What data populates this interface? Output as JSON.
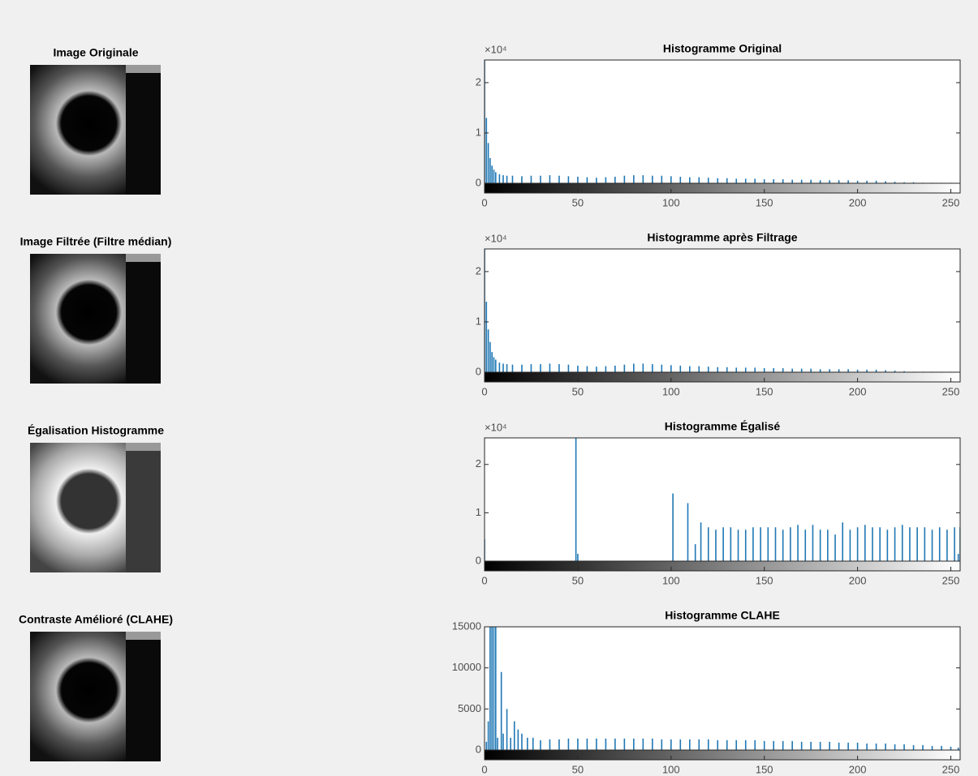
{
  "chart_data": [
    {
      "type": "bar",
      "image_title": "Image Originale",
      "title": "Histogramme Original",
      "y_multiplier": "×10⁴",
      "color": "#1f77b4",
      "xlim": [
        0,
        255
      ],
      "xticks": [
        0,
        50,
        100,
        150,
        200,
        250
      ],
      "ylim": [
        0,
        24500
      ],
      "yticks": [
        {
          "value": 0,
          "label": "0"
        },
        {
          "value": 10000,
          "label": "1"
        },
        {
          "value": 20000,
          "label": "2"
        }
      ],
      "x": [
        0,
        1,
        2,
        3,
        4,
        5,
        6,
        8,
        10,
        12,
        15,
        20,
        25,
        30,
        35,
        40,
        45,
        50,
        55,
        60,
        65,
        70,
        75,
        80,
        85,
        90,
        95,
        100,
        105,
        110,
        115,
        120,
        125,
        130,
        135,
        140,
        145,
        150,
        155,
        160,
        165,
        170,
        175,
        180,
        185,
        190,
        195,
        200,
        205,
        210,
        215,
        220,
        225,
        230,
        235,
        240,
        245,
        250
      ],
      "values": [
        24500,
        13000,
        8000,
        5000,
        3500,
        2700,
        2200,
        1800,
        1600,
        1500,
        1500,
        1400,
        1500,
        1500,
        1600,
        1500,
        1400,
        1300,
        1200,
        1100,
        1200,
        1300,
        1500,
        1600,
        1600,
        1500,
        1500,
        1400,
        1300,
        1200,
        1200,
        1100,
        1000,
        1000,
        900,
        900,
        900,
        800,
        800,
        800,
        700,
        700,
        700,
        600,
        600,
        600,
        600,
        500,
        500,
        500,
        400,
        300,
        200,
        200,
        100,
        100,
        100,
        100
      ]
    },
    {
      "type": "bar",
      "image_title": "Image Filtrée (Filtre médian)",
      "title": "Histogramme après Filtrage",
      "y_multiplier": "×10⁴",
      "color": "#1f77b4",
      "xlim": [
        0,
        255
      ],
      "xticks": [
        0,
        50,
        100,
        150,
        200,
        250
      ],
      "ylim": [
        0,
        24500
      ],
      "yticks": [
        {
          "value": 0,
          "label": "0"
        },
        {
          "value": 10000,
          "label": "1"
        },
        {
          "value": 20000,
          "label": "2"
        }
      ],
      "x": [
        0,
        1,
        2,
        3,
        4,
        5,
        6,
        8,
        10,
        12,
        15,
        20,
        25,
        30,
        35,
        40,
        45,
        50,
        55,
        60,
        65,
        70,
        75,
        80,
        85,
        90,
        95,
        100,
        105,
        110,
        115,
        120,
        125,
        130,
        135,
        140,
        145,
        150,
        155,
        160,
        165,
        170,
        175,
        180,
        185,
        190,
        195,
        200,
        205,
        210,
        215,
        220,
        225,
        230,
        235,
        240,
        245,
        250
      ],
      "values": [
        24500,
        14000,
        8500,
        6000,
        4000,
        3000,
        2500,
        1900,
        1700,
        1600,
        1500,
        1500,
        1600,
        1600,
        1700,
        1600,
        1500,
        1300,
        1200,
        1100,
        1200,
        1300,
        1500,
        1700,
        1700,
        1600,
        1500,
        1400,
        1300,
        1200,
        1200,
        1100,
        1000,
        1000,
        900,
        900,
        900,
        800,
        800,
        800,
        700,
        700,
        700,
        600,
        600,
        600,
        600,
        500,
        500,
        500,
        400,
        300,
        200,
        100,
        100,
        100,
        100,
        100
      ]
    },
    {
      "type": "bar",
      "image_title": "Égalisation Histogramme",
      "title": "Histogramme Égalisé",
      "y_multiplier": "×10⁴",
      "color": "#1f77b4",
      "xlim": [
        0,
        255
      ],
      "xticks": [
        0,
        50,
        100,
        150,
        200,
        250
      ],
      "ylim": [
        0,
        25500
      ],
      "yticks": [
        {
          "value": 0,
          "label": "0"
        },
        {
          "value": 10000,
          "label": "1"
        },
        {
          "value": 20000,
          "label": "2"
        }
      ],
      "x": [
        0,
        49,
        50,
        101,
        109,
        113,
        116,
        120,
        124,
        128,
        132,
        136,
        140,
        144,
        148,
        152,
        156,
        160,
        164,
        168,
        172,
        176,
        180,
        184,
        188,
        192,
        196,
        200,
        204,
        208,
        212,
        216,
        220,
        224,
        228,
        232,
        236,
        240,
        244,
        248,
        252,
        254,
        255
      ],
      "values": [
        4500,
        25500,
        1500,
        14000,
        12000,
        3500,
        8000,
        7000,
        6500,
        7000,
        7000,
        6500,
        6500,
        7000,
        7000,
        7000,
        7000,
        6500,
        7000,
        7500,
        6500,
        7500,
        6500,
        6500,
        5500,
        8000,
        6500,
        7000,
        7500,
        7000,
        7000,
        6500,
        7000,
        7500,
        7000,
        7000,
        7000,
        6500,
        7000,
        6500,
        7000,
        1500,
        7000
      ]
    },
    {
      "type": "bar",
      "image_title": "Contraste Amélioré (CLAHE)",
      "title": "Histogramme CLAHE",
      "color": "#1f77b4",
      "xlim": [
        0,
        255
      ],
      "xticks": [
        0,
        50,
        100,
        150,
        200,
        250
      ],
      "ylim": [
        0,
        15000
      ],
      "yticks": [
        0,
        5000,
        10000,
        15000
      ],
      "x": [
        1,
        2,
        3,
        4,
        5,
        6,
        7,
        9,
        10,
        12,
        14,
        16,
        18,
        20,
        23,
        26,
        30,
        35,
        40,
        45,
        50,
        55,
        60,
        65,
        70,
        75,
        80,
        85,
        90,
        95,
        100,
        105,
        110,
        115,
        120,
        125,
        130,
        135,
        140,
        145,
        150,
        155,
        160,
        165,
        170,
        175,
        180,
        185,
        190,
        195,
        200,
        205,
        210,
        215,
        220,
        225,
        230,
        235,
        240,
        245,
        250,
        254
      ],
      "values": [
        1000,
        3500,
        15000,
        15000,
        15000,
        15000,
        1500,
        9500,
        2000,
        5000,
        1500,
        3500,
        2500,
        2000,
        1500,
        1500,
        1200,
        1300,
        1300,
        1400,
        1400,
        1400,
        1400,
        1400,
        1400,
        1400,
        1400,
        1400,
        1400,
        1300,
        1300,
        1300,
        1300,
        1300,
        1300,
        1200,
        1200,
        1200,
        1200,
        1200,
        1100,
        1100,
        1100,
        1100,
        1000,
        1000,
        1000,
        1000,
        900,
        900,
        900,
        800,
        800,
        800,
        700,
        700,
        600,
        600,
        500,
        500,
        400,
        300
      ]
    }
  ]
}
